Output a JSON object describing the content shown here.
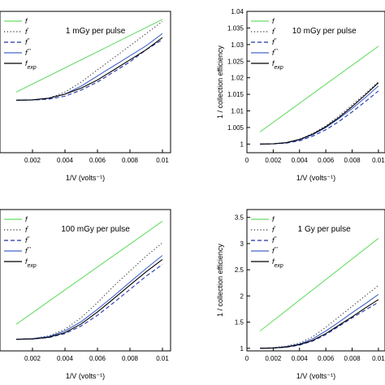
{
  "colors": {
    "f": "#66dd66",
    "f_prime": "#333333",
    "f_dprime": "#2233aa",
    "f_tprime": "#4466cc",
    "f_exp": "#000000"
  },
  "chart_data": [
    {
      "type": "line",
      "annotation": "1 mGy per pulse",
      "xlabel": "1/V (volts⁻¹)",
      "ylabel": "",
      "xlim": [
        0.0,
        0.0105
      ],
      "ylim": [
        0.9974,
        1.0044
      ],
      "xticks": [
        "0.002",
        "0.004",
        "0.006",
        "0.008",
        "0.01"
      ],
      "yticks": [],
      "legend": [
        "f",
        "f'",
        "f''",
        "f'''",
        "f_exp"
      ],
      "legend_position": "top-left",
      "series": [
        {
          "name": "f",
          "style": "solid",
          "color": "f",
          "points": [
            [
              0.001,
              1.0004
            ],
            [
              0.01,
              1.004
            ]
          ]
        },
        {
          "name": "f'",
          "style": "dotted",
          "color": "f_prime",
          "points": [
            [
              0.001,
              1.0
            ],
            [
              0.002,
              1.00002
            ],
            [
              0.003,
              1.0001
            ],
            [
              0.004,
              1.0004
            ],
            [
              0.005,
              1.0009
            ],
            [
              0.006,
              1.0015
            ],
            [
              0.007,
              1.0021
            ],
            [
              0.008,
              1.0027
            ],
            [
              0.009,
              1.0033
            ],
            [
              0.01,
              1.0039
            ]
          ]
        },
        {
          "name": "f''",
          "style": "dashed",
          "color": "f_dprime",
          "points": [
            [
              0.001,
              1.0
            ],
            [
              0.002,
              1.00001
            ],
            [
              0.003,
              1.00005
            ],
            [
              0.004,
              1.0002
            ],
            [
              0.005,
              1.0005
            ],
            [
              0.006,
              1.0009
            ],
            [
              0.007,
              1.0014
            ],
            [
              0.008,
              1.0019
            ],
            [
              0.009,
              1.0025
            ],
            [
              0.01,
              1.003
            ]
          ]
        },
        {
          "name": "f'''",
          "style": "solid",
          "color": "f_tprime",
          "points": [
            [
              0.001,
              1.0
            ],
            [
              0.002,
              1.00002
            ],
            [
              0.003,
              1.0001
            ],
            [
              0.004,
              1.0003
            ],
            [
              0.005,
              1.0007
            ],
            [
              0.006,
              1.0012
            ],
            [
              0.007,
              1.0017
            ],
            [
              0.008,
              1.0022
            ],
            [
              0.009,
              1.0027
            ],
            [
              0.01,
              1.0033
            ]
          ]
        },
        {
          "name": "f_exp",
          "style": "solid",
          "color": "f_exp",
          "points": [
            [
              0.001,
              1.0
            ],
            [
              0.002,
              1.00002
            ],
            [
              0.003,
              1.0001
            ],
            [
              0.004,
              1.0003
            ],
            [
              0.005,
              1.0006
            ],
            [
              0.006,
              1.001
            ],
            [
              0.007,
              1.0015
            ],
            [
              0.008,
              1.002
            ],
            [
              0.009,
              1.0025
            ],
            [
              0.01,
              1.0031
            ]
          ]
        }
      ]
    },
    {
      "type": "line",
      "annotation": "10 mGy per pulse",
      "xlabel": "1/V (volts⁻¹)",
      "ylabel": "1 / collection efficiency",
      "xlim": [
        0.0,
        0.0105
      ],
      "ylim": [
        0.9974,
        1.04
      ],
      "xticks": [
        "0",
        "0.002",
        "0.004",
        "0.006",
        "0.008",
        "0.01"
      ],
      "yticks": [
        "1",
        "1.005",
        "1.01",
        "1.015",
        "1.02",
        "1.025",
        "1.03",
        "1.035",
        "1.04"
      ],
      "legend": [
        "f",
        "f'",
        "f''",
        "f'''",
        "f_exp"
      ],
      "legend_position": "top-left",
      "series": [
        {
          "name": "f",
          "style": "solid",
          "color": "f",
          "points": [
            [
              0.001,
              1.0037
            ],
            [
              0.01,
              1.0295
            ]
          ]
        },
        {
          "name": "f'",
          "style": "dotted",
          "color": "f_prime",
          "points": [
            [
              0.001,
              1.0
            ],
            [
              0.002,
              1.0001
            ],
            [
              0.003,
              1.0005
            ],
            [
              0.004,
              1.0015
            ],
            [
              0.005,
              1.0032
            ],
            [
              0.006,
              1.0055
            ],
            [
              0.007,
              1.0085
            ],
            [
              0.008,
              1.0118
            ],
            [
              0.009,
              1.0152
            ],
            [
              0.01,
              1.0188
            ]
          ]
        },
        {
          "name": "f''",
          "style": "dashed",
          "color": "f_dprime",
          "points": [
            [
              0.001,
              1.0
            ],
            [
              0.002,
              1.00005
            ],
            [
              0.003,
              1.0003
            ],
            [
              0.004,
              1.001
            ],
            [
              0.005,
              1.0024
            ],
            [
              0.006,
              1.0043
            ],
            [
              0.007,
              1.0068
            ],
            [
              0.008,
              1.0097
            ],
            [
              0.009,
              1.0128
            ],
            [
              0.01,
              1.016
            ]
          ]
        },
        {
          "name": "f'''",
          "style": "solid",
          "color": "f_tprime",
          "points": [
            [
              0.001,
              1.0
            ],
            [
              0.002,
              1.0001
            ],
            [
              0.003,
              1.0004
            ],
            [
              0.004,
              1.0013
            ],
            [
              0.005,
              1.0028
            ],
            [
              0.006,
              1.005
            ],
            [
              0.007,
              1.0077
            ],
            [
              0.008,
              1.0107
            ],
            [
              0.009,
              1.014
            ],
            [
              0.01,
              1.0175
            ]
          ]
        },
        {
          "name": "f_exp",
          "style": "solid",
          "color": "f_exp",
          "points": [
            [
              0.001,
              1.0
            ],
            [
              0.002,
              1.0001
            ],
            [
              0.003,
              1.0004
            ],
            [
              0.004,
              1.0014
            ],
            [
              0.005,
              1.003
            ],
            [
              0.006,
              1.0052
            ],
            [
              0.007,
              1.008
            ],
            [
              0.008,
              1.0113
            ],
            [
              0.009,
              1.0148
            ],
            [
              0.01,
              1.0185
            ]
          ]
        }
      ]
    },
    {
      "type": "line",
      "annotation": "100 mGy per pulse",
      "xlabel": "1/V (volts⁻¹)",
      "ylabel": "",
      "xlim": [
        0.0,
        0.0105
      ],
      "ylim": [
        0.965,
        1.39
      ],
      "xticks": [
        "0.002",
        "0.004",
        "0.006",
        "0.008",
        "0.01"
      ],
      "yticks": [],
      "legend": [
        "f",
        "f'",
        "f''",
        "f'''",
        "f_exp"
      ],
      "legend_position": "top-left",
      "series": [
        {
          "name": "f",
          "style": "solid",
          "color": "f",
          "points": [
            [
              0.001,
              1.045
            ],
            [
              0.01,
              1.355
            ]
          ]
        },
        {
          "name": "f'",
          "style": "dotted",
          "color": "f_prime",
          "points": [
            [
              0.001,
              1.0
            ],
            [
              0.002,
              1.002
            ],
            [
              0.003,
              1.01
            ],
            [
              0.004,
              1.03
            ],
            [
              0.005,
              1.065
            ],
            [
              0.006,
              1.11
            ],
            [
              0.007,
              1.16
            ],
            [
              0.008,
              1.205
            ],
            [
              0.009,
              1.25
            ],
            [
              0.01,
              1.29
            ]
          ]
        },
        {
          "name": "f''",
          "style": "dashed",
          "color": "f_dprime",
          "points": [
            [
              0.001,
              1.0
            ],
            [
              0.002,
              1.001
            ],
            [
              0.003,
              1.005
            ],
            [
              0.004,
              1.017
            ],
            [
              0.005,
              1.04
            ],
            [
              0.006,
              1.072
            ],
            [
              0.007,
              1.11
            ],
            [
              0.008,
              1.15
            ],
            [
              0.009,
              1.19
            ],
            [
              0.01,
              1.225
            ]
          ]
        },
        {
          "name": "f'''",
          "style": "solid",
          "color": "f_tprime",
          "points": [
            [
              0.001,
              1.0
            ],
            [
              0.002,
              1.002
            ],
            [
              0.003,
              1.008
            ],
            [
              0.004,
              1.025
            ],
            [
              0.005,
              1.053
            ],
            [
              0.006,
              1.09
            ],
            [
              0.007,
              1.13
            ],
            [
              0.008,
              1.172
            ],
            [
              0.009,
              1.213
            ],
            [
              0.01,
              1.252
            ]
          ]
        },
        {
          "name": "f_exp",
          "style": "solid",
          "color": "f_exp",
          "points": [
            [
              0.001,
              1.0
            ],
            [
              0.002,
              1.001
            ],
            [
              0.003,
              1.006
            ],
            [
              0.004,
              1.02
            ],
            [
              0.005,
              1.046
            ],
            [
              0.006,
              1.082
            ],
            [
              0.007,
              1.122
            ],
            [
              0.008,
              1.163
            ],
            [
              0.009,
              1.203
            ],
            [
              0.01,
              1.24
            ]
          ]
        }
      ]
    },
    {
      "type": "line",
      "annotation": "1 Gy per pulse",
      "xlabel": "1/V (volts⁻¹)",
      "ylabel": "1 / collection efficiency",
      "xlim": [
        0.0,
        0.0105
      ],
      "ylim": [
        0.95,
        3.65
      ],
      "xticks": [
        "0",
        "0.002",
        "0.004",
        "0.006",
        "0.008",
        "0.01"
      ],
      "yticks": [
        "1",
        "1.5",
        "2",
        "2.5",
        "3",
        "3.5"
      ],
      "legend": [
        "f",
        "f'",
        "f''",
        "f'''",
        "f_exp"
      ],
      "legend_position": "top-left",
      "series": [
        {
          "name": "f",
          "style": "solid",
          "color": "f",
          "points": [
            [
              0.001,
              1.33
            ],
            [
              0.01,
              3.1
            ]
          ]
        },
        {
          "name": "f'",
          "style": "dotted",
          "color": "f_prime",
          "points": [
            [
              0.001,
              1.0
            ],
            [
              0.002,
              1.01
            ],
            [
              0.003,
              1.04
            ],
            [
              0.004,
              1.1
            ],
            [
              0.005,
              1.22
            ],
            [
              0.006,
              1.4
            ],
            [
              0.007,
              1.6
            ],
            [
              0.008,
              1.8
            ],
            [
              0.009,
              2.0
            ],
            [
              0.01,
              2.2
            ]
          ]
        },
        {
          "name": "f''",
          "style": "dashed",
          "color": "f_dprime",
          "points": [
            [
              0.001,
              1.0
            ],
            [
              0.002,
              1.005
            ],
            [
              0.003,
              1.02
            ],
            [
              0.004,
              1.06
            ],
            [
              0.005,
              1.14
            ],
            [
              0.006,
              1.26
            ],
            [
              0.007,
              1.42
            ],
            [
              0.008,
              1.58
            ],
            [
              0.009,
              1.73
            ],
            [
              0.01,
              1.88
            ]
          ]
        },
        {
          "name": "f'''",
          "style": "solid",
          "color": "f_tprime",
          "points": [
            [
              0.001,
              1.0
            ],
            [
              0.002,
              1.008
            ],
            [
              0.003,
              1.03
            ],
            [
              0.004,
              1.08
            ],
            [
              0.005,
              1.18
            ],
            [
              0.006,
              1.33
            ],
            [
              0.007,
              1.5
            ],
            [
              0.008,
              1.68
            ],
            [
              0.009,
              1.85
            ],
            [
              0.01,
              2.03
            ]
          ]
        },
        {
          "name": "f_exp",
          "style": "solid",
          "color": "f_exp",
          "points": [
            [
              0.001,
              1.0
            ],
            [
              0.002,
              1.006
            ],
            [
              0.003,
              1.025
            ],
            [
              0.004,
              1.07
            ],
            [
              0.005,
              1.15
            ],
            [
              0.006,
              1.28
            ],
            [
              0.007,
              1.44
            ],
            [
              0.008,
              1.6
            ],
            [
              0.009,
              1.77
            ],
            [
              0.01,
              1.93
            ]
          ]
        }
      ]
    }
  ]
}
